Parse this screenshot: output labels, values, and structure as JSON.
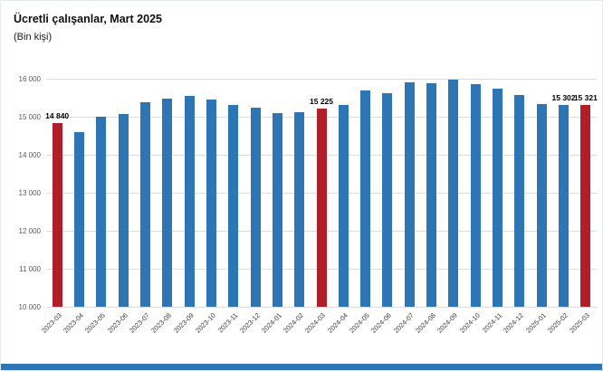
{
  "header": {
    "title": "Ücretli çalışanlar, Mart 2025",
    "subtitle": "(Bin kişi)"
  },
  "colors": {
    "bar_blue": "#2e75b6",
    "bar_red": "#b01e28",
    "gridline": "#dcdcdc",
    "footer_accent": "#2e75b6"
  },
  "chart_data": {
    "type": "bar",
    "title": "Ücretli çalışanlar, Mart 2025",
    "subtitle": "(Bin kişi)",
    "xlabel": "",
    "ylabel": "",
    "ylim": [
      10000,
      16000
    ],
    "grid": true,
    "yticks": [
      10000,
      11000,
      12000,
      13000,
      14000,
      15000,
      16000
    ],
    "ytick_labels": [
      "10 000",
      "11 000",
      "12 000",
      "13 000",
      "14 000",
      "15 000",
      "16 000"
    ],
    "categories": [
      "2023-03",
      "2023-04",
      "2023-05",
      "2023-06",
      "2023-07",
      "2023-08",
      "2023-09",
      "2023-10",
      "2023-11",
      "2023-12",
      "2024-01",
      "2024-02",
      "2024-03",
      "2024-04",
      "2024-05",
      "2024-06",
      "2024-07",
      "2024-08",
      "2024-09",
      "2024-10",
      "2024-11",
      "2024-12",
      "2025-01",
      "2025-02",
      "2025-03"
    ],
    "values": [
      14840,
      14600,
      15000,
      15060,
      15370,
      15480,
      15550,
      15460,
      15310,
      15250,
      15090,
      15120,
      15225,
      15310,
      15690,
      15610,
      15900,
      15880,
      15980,
      15850,
      15740,
      15570,
      15330,
      15302,
      15321
    ],
    "highlighted_categories": [
      "2023-03",
      "2024-03",
      "2025-03"
    ],
    "value_labels": {
      "2023-03": "14 840",
      "2024-03": "15 225",
      "2025-02": "15 302",
      "2025-03": "15 321"
    }
  }
}
